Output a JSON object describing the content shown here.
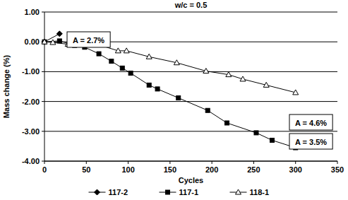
{
  "chart_data": {
    "type": "line",
    "title": "w/c = 0.5",
    "x_label": "Cycles",
    "y_label": "Mass change (%)",
    "xlim": [
      0,
      350
    ],
    "ylim": [
      -4,
      1
    ],
    "xticks": [
      0,
      50,
      100,
      150,
      200,
      250,
      300,
      350
    ],
    "yticks": [
      {
        "value": 1,
        "label": "1.00"
      },
      {
        "value": 0,
        "label": "0.00"
      },
      {
        "value": -1,
        "label": "-1.00"
      },
      {
        "value": -2,
        "label": "-2.00"
      },
      {
        "value": -3,
        "label": "-3.00"
      },
      {
        "value": -4,
        "label": "-4.00"
      }
    ],
    "grid": true,
    "legend": "bottom",
    "series": [
      {
        "name": "117-2",
        "color": "#000000",
        "marker": "diamond",
        "annotation": "A = 2.7%",
        "x": [
          0,
          18
        ],
        "values": [
          0,
          0.27
        ]
      },
      {
        "name": "117-1",
        "color": "#000000",
        "marker": "square",
        "annotation": "A = 3.5%",
        "x": [
          0,
          18,
          36,
          48,
          65,
          80,
          93,
          103,
          125,
          135,
          160,
          195,
          218,
          253,
          272,
          300
        ],
        "values": [
          0,
          0.03,
          -0.12,
          -0.18,
          -0.4,
          -0.65,
          -0.88,
          -1.05,
          -1.45,
          -1.58,
          -1.88,
          -2.3,
          -2.72,
          -3.05,
          -3.3,
          -3.55
        ]
      },
      {
        "name": "118-1",
        "color": "#000000",
        "marker": "triangle",
        "annotation": "A = 4.6%",
        "x": [
          0,
          10,
          28,
          40,
          55,
          65,
          88,
          98,
          125,
          158,
          193,
          220,
          237,
          265,
          300
        ],
        "values": [
          0,
          -0.02,
          -0.08,
          -0.05,
          -0.1,
          -0.1,
          -0.3,
          -0.3,
          -0.5,
          -0.7,
          -0.98,
          -1.1,
          -1.25,
          -1.45,
          -1.7
        ]
      }
    ]
  }
}
